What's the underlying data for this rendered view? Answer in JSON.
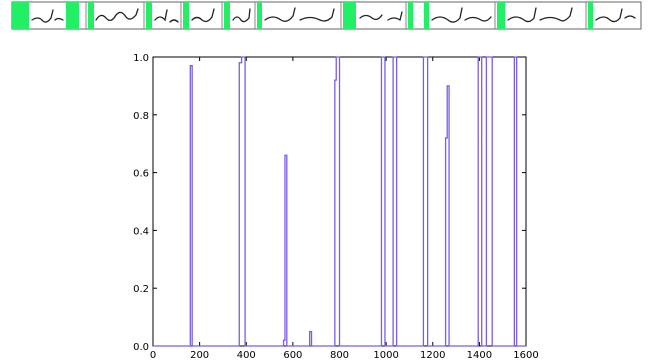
{
  "segmentation_strip": {
    "description_colors": {
      "highlight": "#22ee66",
      "ink": "#222222",
      "border": "#666666"
    },
    "segments": 14
  },
  "chart_data": {
    "type": "line",
    "title": "",
    "xlabel": "",
    "ylabel": "",
    "xlim": [
      0,
      1600
    ],
    "ylim": [
      0,
      1.0
    ],
    "grid": false,
    "line_color": "#7b5ce6",
    "x_ticks": [
      0,
      200,
      400,
      600,
      800,
      1000,
      1200,
      1400,
      1600
    ],
    "y_ticks": [
      "0.0",
      "0.2",
      "0.4",
      "0.6",
      "0.8",
      "1.0"
    ],
    "spikes": [
      {
        "x_start": 160,
        "x_end": 168,
        "y": 0.97
      },
      {
        "x_start": 370,
        "x_end": 380,
        "y": 0.98
      },
      {
        "x_start": 380,
        "x_end": 395,
        "y": 1.0
      },
      {
        "x_start": 560,
        "x_end": 566,
        "y": 0.02
      },
      {
        "x_start": 566,
        "x_end": 574,
        "y": 0.66
      },
      {
        "x_start": 672,
        "x_end": 680,
        "y": 0.05
      },
      {
        "x_start": 780,
        "x_end": 786,
        "y": 0.92
      },
      {
        "x_start": 786,
        "x_end": 800,
        "y": 1.0
      },
      {
        "x_start": 980,
        "x_end": 995,
        "y": 1.0
      },
      {
        "x_start": 1030,
        "x_end": 1045,
        "y": 1.0
      },
      {
        "x_start": 1160,
        "x_end": 1178,
        "y": 1.0
      },
      {
        "x_start": 1255,
        "x_end": 1262,
        "y": 0.72
      },
      {
        "x_start": 1262,
        "x_end": 1270,
        "y": 0.9
      },
      {
        "x_start": 1395,
        "x_end": 1410,
        "y": 1.0
      },
      {
        "x_start": 1430,
        "x_end": 1455,
        "y": 1.0
      },
      {
        "x_start": 1550,
        "x_end": 1560,
        "y": 1.0
      }
    ]
  }
}
